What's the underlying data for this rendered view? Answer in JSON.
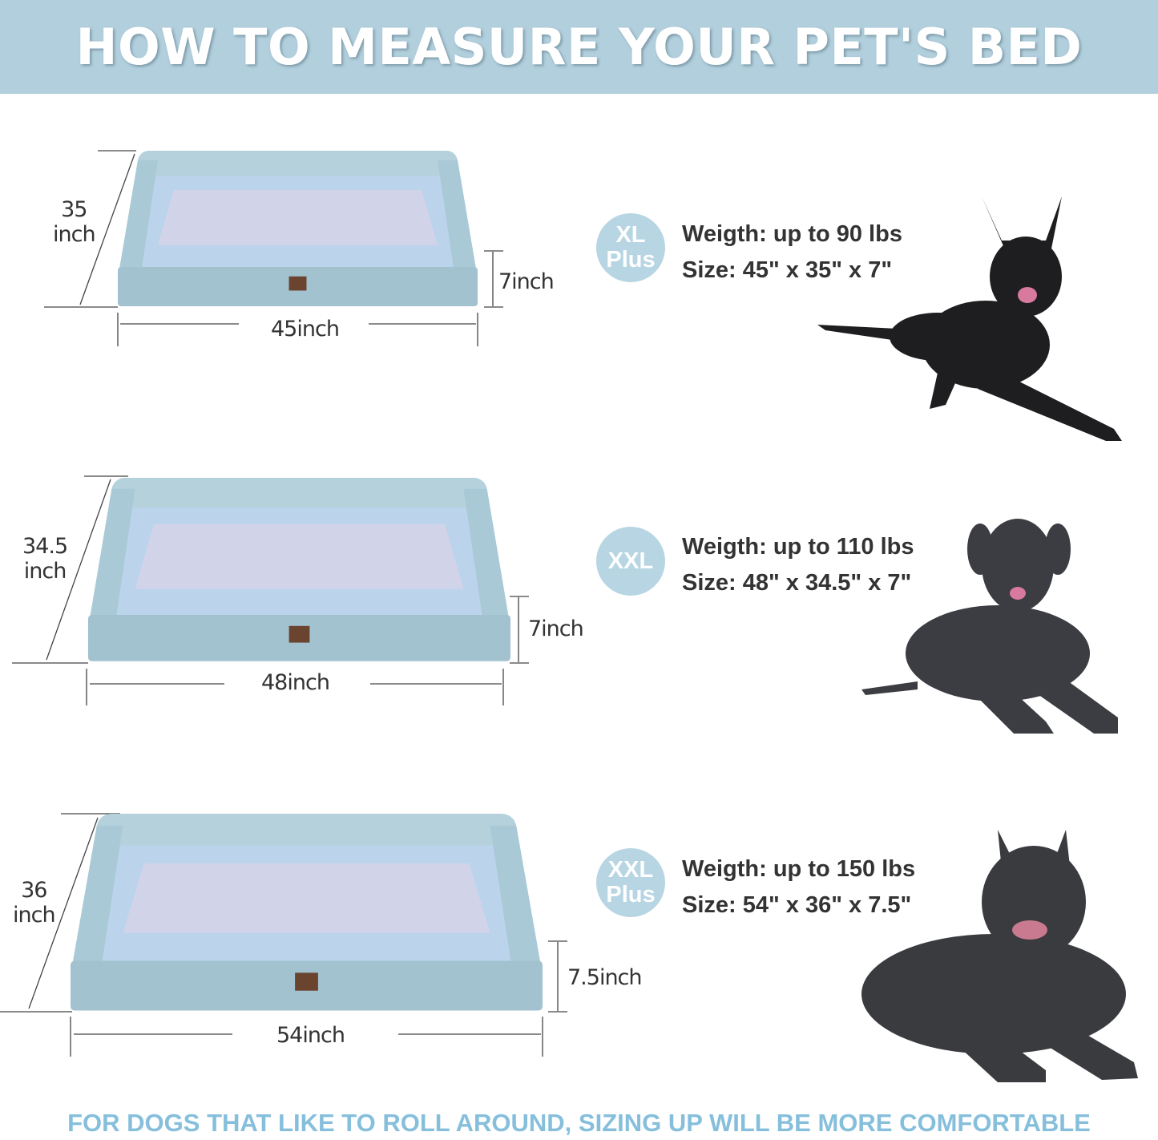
{
  "header": {
    "title": "HOW TO MEASURE YOUR PET'S BED"
  },
  "colors": {
    "header_bg": "#b2cfdd",
    "badge_bg": "#b7d5e3",
    "footer_text": "#86bfdc",
    "bed_fabric": "#a9c9d6",
    "dog": "#2b2b2e"
  },
  "sizes": [
    {
      "badge": [
        "XL",
        "Plus"
      ],
      "weight": "Weigth: up to 90 lbs",
      "size": "Size: 45\" x 35\" x 7\"",
      "depth_label": [
        "35",
        "inch"
      ],
      "height_label": "7inch",
      "width_label": "45inch",
      "image": "black-shepherd-dog"
    },
    {
      "badge": [
        "XXL"
      ],
      "weight": "Weigth: up to 110 lbs",
      "size": "Size: 48\" x 34.5\" x 7\"",
      "depth_label": [
        "34.5",
        "inch"
      ],
      "height_label": "7inch",
      "width_label": "48inch",
      "image": "great-dane-dog"
    },
    {
      "badge": [
        "XXL",
        "Plus"
      ],
      "weight": "Weigth: up to 150 lbs",
      "size": "Size: 54\" x 36\" x 7.5\"",
      "depth_label": [
        "36",
        "inch"
      ],
      "height_label": "7.5inch",
      "width_label": "54inch",
      "image": "cane-corso-dog"
    }
  ],
  "footer": {
    "text": "FOR DOGS THAT LIKE TO ROLL AROUND, SIZING UP WILL BE MORE COMFORTABLE"
  }
}
